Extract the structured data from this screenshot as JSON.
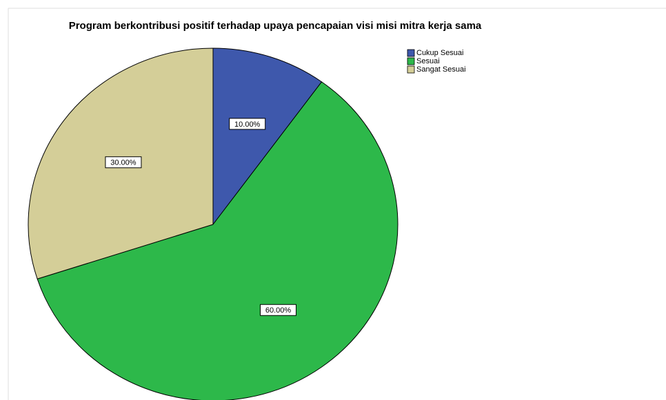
{
  "chart_data": {
    "type": "pie",
    "title": "Program berkontribusi positif terhadap upaya pencapaian visi misi mitra kerja sama",
    "categories": [
      "Cukup Sesuai",
      "Sesuai",
      "Sangat Sesuai"
    ],
    "values": [
      10,
      60,
      30
    ],
    "value_labels": [
      "10.00%",
      "60.00%",
      "30.00%"
    ],
    "colors": [
      "#3e58ac",
      "#2db84a",
      "#d4ce98"
    ],
    "legend": "top-right"
  }
}
